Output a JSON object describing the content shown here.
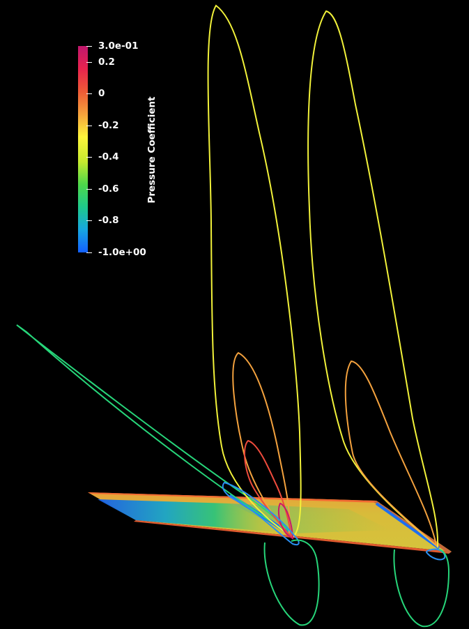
{
  "colorbar": {
    "title": "Pressure Coefficient",
    "range": [
      -1.0,
      0.3
    ],
    "gradient_stops": [
      "#c0176d",
      "#e8234e",
      "#ee5a36",
      "#f5a23c",
      "#fdf43b",
      "#c6eb2e",
      "#4ed84a",
      "#1ec98c",
      "#17a6e0",
      "#1460ff"
    ],
    "ticks": [
      {
        "label": "3.0e-01",
        "value": 0.3
      },
      {
        "label": "0.2",
        "value": 0.2
      },
      {
        "label": "0",
        "value": 0.0
      },
      {
        "label": "-0.2",
        "value": -0.2
      },
      {
        "label": "-0.4",
        "value": -0.4
      },
      {
        "label": "-0.6",
        "value": -0.6
      },
      {
        "label": "-0.8",
        "value": -0.8
      },
      {
        "label": "-1.0e+00",
        "value": -1.0
      }
    ]
  },
  "scene": {
    "background": "#000000",
    "wing_surface": {
      "base_color": "#d7b438",
      "leading_edge_color": "#1b6fe0",
      "trailing_edge_color": "#f26a32"
    },
    "contour_lines": [
      {
        "name": "outboard-loop-far",
        "pressure_coefficient_color": "#27d67a"
      },
      {
        "name": "vortex-loop-yellow-left",
        "pressure_coefficient_color": "#f2f23a"
      },
      {
        "name": "vortex-loop-yellow-right",
        "pressure_coefficient_color": "#f2f23a"
      },
      {
        "name": "vortex-loop-orange-left",
        "pressure_coefficient_color": "#f4a23e"
      },
      {
        "name": "vortex-loop-orange-right",
        "pressure_coefficient_color": "#f4a23e"
      },
      {
        "name": "vortex-loop-red",
        "pressure_coefficient_color": "#ee4b3c"
      },
      {
        "name": "vortex-loop-magenta",
        "pressure_coefficient_color": "#c71a6a"
      },
      {
        "name": "vortex-loop-blue",
        "pressure_coefficient_color": "#2a8ff0"
      },
      {
        "name": "lower-loop-green-left",
        "pressure_coefficient_color": "#27d67a"
      },
      {
        "name": "lower-loop-green-right",
        "pressure_coefficient_color": "#27d67a"
      }
    ]
  }
}
